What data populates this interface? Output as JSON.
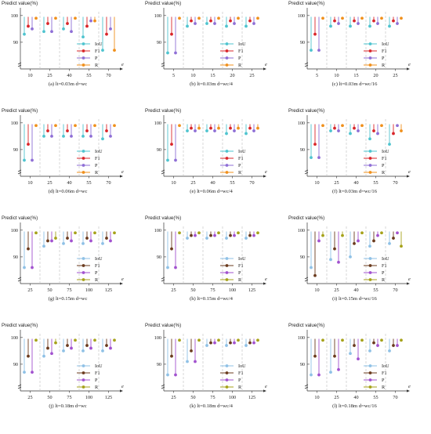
{
  "figure": {
    "ylabel": "Predict value(%)",
    "xlabel": "e",
    "ylim": [
      80,
      102
    ],
    "yticks": [
      90,
      100
    ],
    "legend_labels": [
      "IoU",
      "F1",
      "P",
      "R"
    ],
    "colors_set_a": {
      "IoU": "#4fc4cf",
      "F1": "#d9262a",
      "P": "#8f6fd6",
      "R": "#f0901c"
    },
    "colors_set_b": {
      "IoU": "#8fc1e6",
      "F1": "#6b3b1e",
      "P": "#a252cf",
      "R": "#a6a21a"
    }
  },
  "chart_data": [
    {
      "type": "scatter",
      "caption": "(a) lt=0.03m  d=wc",
      "colorset": "a",
      "categories": [
        "10",
        "25",
        "40",
        "55",
        "70"
      ],
      "series": [
        {
          "name": "IoU",
          "values": [
            93,
            94,
            95,
            92,
            87
          ]
        },
        {
          "name": "F1",
          "values": [
            96,
            97,
            97,
            96,
            93
          ]
        },
        {
          "name": "P",
          "values": [
            95,
            94,
            94,
            98,
            95
          ]
        },
        {
          "name": "R",
          "values": [
            99,
            99,
            99,
            98,
            87
          ]
        }
      ]
    },
    {
      "type": "scatter",
      "caption": "(b) lt=0.03m  d=wc/4",
      "colorset": "a",
      "categories": [
        "5",
        "10",
        "15",
        "20",
        "25"
      ],
      "series": [
        {
          "name": "IoU",
          "values": [
            86,
            96,
            97,
            96,
            96
          ]
        },
        {
          "name": "F1",
          "values": [
            93,
            98,
            98,
            98,
            98
          ]
        },
        {
          "name": "P",
          "values": [
            86,
            97,
            97,
            97,
            97
          ]
        },
        {
          "name": "R",
          "values": [
            99,
            99,
            99,
            99,
            99
          ]
        }
      ]
    },
    {
      "type": "scatter",
      "caption": "(c) lt=0.03m  d=wc/16",
      "colorset": "a",
      "categories": [
        "5",
        "10",
        "15",
        "20",
        "25"
      ],
      "series": [
        {
          "name": "IoU",
          "values": [
            87,
            96,
            96,
            96,
            96
          ]
        },
        {
          "name": "F1",
          "values": [
            93,
            98,
            98,
            98,
            98
          ]
        },
        {
          "name": "P",
          "values": [
            87,
            97,
            97,
            97,
            97
          ]
        },
        {
          "name": "R",
          "values": [
            99,
            99,
            99,
            99,
            99
          ]
        }
      ]
    },
    {
      "type": "scatter",
      "caption": "(d) lt=0.06m  d=wc",
      "colorset": "a",
      "categories": [
        "10",
        "25",
        "40",
        "55",
        "70"
      ],
      "series": [
        {
          "name": "IoU",
          "values": [
            86,
            95,
            95,
            95,
            94
          ]
        },
        {
          "name": "F1",
          "values": [
            92,
            97,
            97,
            97,
            97
          ]
        },
        {
          "name": "P",
          "values": [
            86,
            95,
            95,
            95,
            95
          ]
        },
        {
          "name": "R",
          "values": [
            99,
            99,
            99,
            99,
            99
          ]
        }
      ]
    },
    {
      "type": "scatter",
      "caption": "(e) lt=0.06m  d=wc/4",
      "colorset": "a",
      "categories": [
        "10",
        "25",
        "40",
        "55",
        "70"
      ],
      "series": [
        {
          "name": "IoU",
          "values": [
            86,
            97,
            97,
            96,
            96
          ]
        },
        {
          "name": "F1",
          "values": [
            92,
            98,
            98,
            98,
            98
          ]
        },
        {
          "name": "P",
          "values": [
            86,
            97,
            97,
            97,
            97
          ]
        },
        {
          "name": "R",
          "values": [
            99,
            98,
            98,
            98,
            98
          ]
        }
      ]
    },
    {
      "type": "scatter",
      "caption": "(f) lt=0.03m  d=wc/16",
      "colorset": "a",
      "categories": [
        "10",
        "25",
        "40",
        "55",
        "70"
      ],
      "series": [
        {
          "name": "IoU",
          "values": [
            87,
            97,
            96,
            94,
            92
          ]
        },
        {
          "name": "F1",
          "values": [
            92,
            98,
            98,
            97,
            96
          ]
        },
        {
          "name": "P",
          "values": [
            87,
            97,
            97,
            96,
            99
          ]
        },
        {
          "name": "R",
          "values": [
            99,
            99,
            99,
            99,
            97
          ]
        }
      ]
    },
    {
      "type": "scatter",
      "caption": "(g) lt=0.15m  d=wc",
      "colorset": "b",
      "categories": [
        "25",
        "50",
        "75",
        "100",
        "125"
      ],
      "series": [
        {
          "name": "IoU",
          "values": [
            86,
            94,
            95,
            95,
            95
          ]
        },
        {
          "name": "F1",
          "values": [
            93,
            96,
            97,
            97,
            97
          ]
        },
        {
          "name": "P",
          "values": [
            86,
            96,
            96,
            96,
            96
          ]
        },
        {
          "name": "R",
          "values": [
            99,
            97,
            99,
            99,
            99
          ]
        }
      ]
    },
    {
      "type": "scatter",
      "caption": "(h) lt=0.15m  d=wc/4",
      "colorset": "b",
      "categories": [
        "25",
        "50",
        "75",
        "100",
        "125"
      ],
      "series": [
        {
          "name": "IoU",
          "values": [
            86,
            97,
            97,
            97,
            97
          ]
        },
        {
          "name": "F1",
          "values": [
            93,
            98,
            98,
            98,
            98
          ]
        },
        {
          "name": "P",
          "values": [
            86,
            98,
            98,
            98,
            98
          ]
        },
        {
          "name": "R",
          "values": [
            99,
            99,
            99,
            99,
            99
          ]
        }
      ]
    },
    {
      "type": "scatter",
      "caption": "(i) lt=0.15m  d=wc/16",
      "colorset": "b",
      "categories": [
        "10",
        "25",
        "40",
        "55",
        "70"
      ],
      "series": [
        {
          "name": "IoU",
          "values": [
            86,
            89,
            90,
            94,
            95
          ]
        },
        {
          "name": "F1",
          "values": [
            83,
            93,
            95,
            96,
            97
          ]
        },
        {
          "name": "P",
          "values": [
            96,
            88,
            96,
            98,
            99
          ]
        },
        {
          "name": "R",
          "values": [
            98,
            98,
            99,
            99,
            94
          ]
        }
      ]
    },
    {
      "type": "scatter",
      "caption": "(j) lt=0.18m  d=wc",
      "colorset": "b",
      "categories": [
        "25",
        "50",
        "75",
        "100",
        "125"
      ],
      "series": [
        {
          "name": "IoU",
          "values": [
            87,
            93,
            95,
            95,
            95
          ]
        },
        {
          "name": "F1",
          "values": [
            93,
            96,
            97,
            97,
            97
          ]
        },
        {
          "name": "P",
          "values": [
            87,
            94,
            96,
            96,
            96
          ]
        },
        {
          "name": "R",
          "values": [
            99,
            98,
            99,
            99,
            99
          ]
        }
      ]
    },
    {
      "type": "scatter",
      "caption": "(k) lt=0.18m  d=wc/4",
      "colorset": "b",
      "categories": [
        "25",
        "50",
        "75",
        "100",
        "125"
      ],
      "series": [
        {
          "name": "IoU",
          "values": [
            86,
            91,
            97,
            97,
            97
          ]
        },
        {
          "name": "F1",
          "values": [
            93,
            95,
            98,
            98,
            98
          ]
        },
        {
          "name": "P",
          "values": [
            86,
            91,
            98,
            98,
            98
          ]
        },
        {
          "name": "R",
          "values": [
            99,
            99,
            99,
            99,
            99
          ]
        }
      ]
    },
    {
      "type": "scatter",
      "caption": "(l) lt=0.18m  d=wc/16",
      "colorset": "b",
      "categories": [
        "10",
        "25",
        "40",
        "55",
        "70"
      ],
      "series": [
        {
          "name": "IoU",
          "values": [
            86,
            87,
            94,
            95,
            95
          ]
        },
        {
          "name": "F1",
          "values": [
            93,
            93,
            97,
            98,
            97
          ]
        },
        {
          "name": "P",
          "values": [
            86,
            88,
            92,
            97,
            97
          ]
        },
        {
          "name": "R",
          "values": [
            99,
            99,
            99,
            99,
            99
          ]
        }
      ]
    }
  ]
}
